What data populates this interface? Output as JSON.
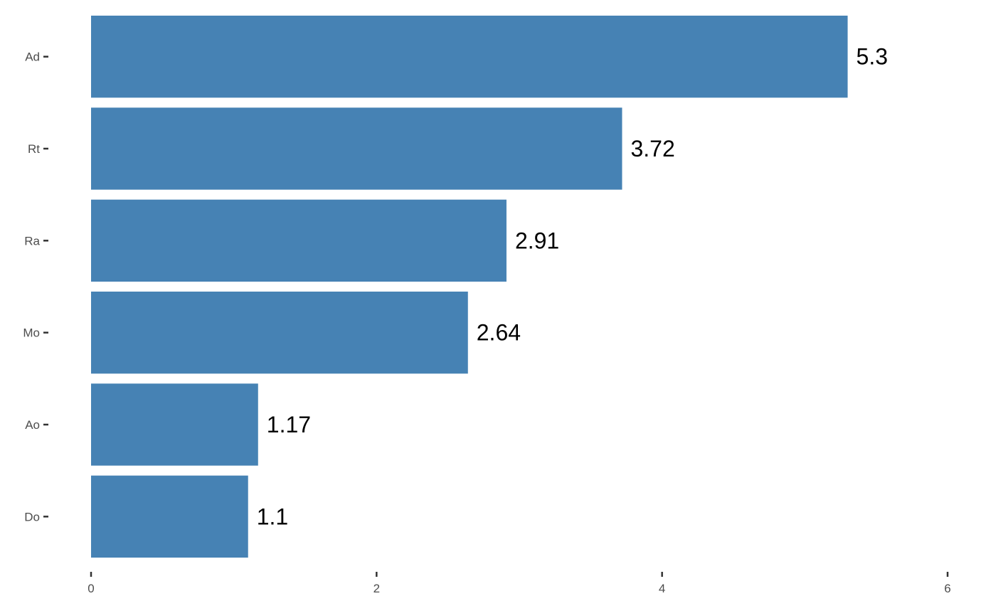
{
  "chart_data": {
    "type": "bar",
    "orientation": "horizontal",
    "categories": [
      "Ad",
      "Rt",
      "Ra",
      "Mo",
      "Ao",
      "Do"
    ],
    "values": [
      5.3,
      3.72,
      2.91,
      2.64,
      1.17,
      1.1
    ],
    "data_labels": [
      "5.3",
      "3.72",
      "2.91",
      "2.64",
      "1.17",
      "1.1"
    ],
    "x_ticks": [
      "0",
      "2",
      "4",
      "6"
    ],
    "xlim": [
      0,
      6
    ],
    "title": "",
    "xlabel": "",
    "ylabel": "",
    "grid": false,
    "bar_color": "#4682B4"
  }
}
